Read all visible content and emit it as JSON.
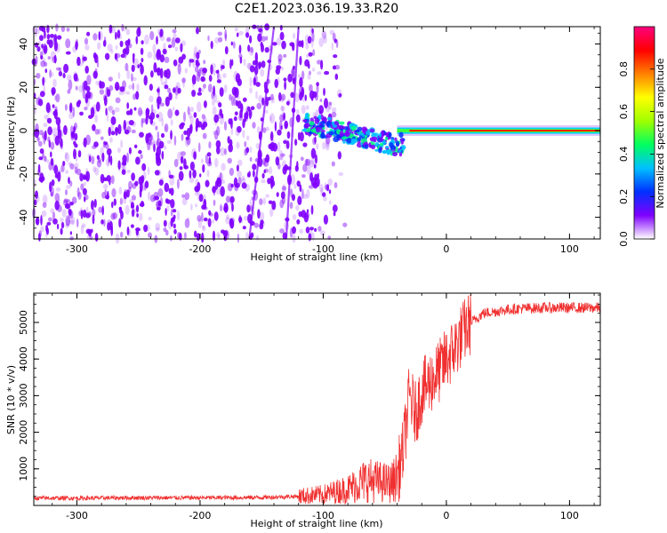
{
  "title": "C2E1.2023.036.19.33.R20",
  "colors": {
    "spectrogram_low": "#8000ff",
    "snr_line": "#f03030",
    "colormap": [
      "#ffffff",
      "#8000ff",
      "#0030ff",
      "#00c0ff",
      "#00ff60",
      "#a0ff00",
      "#ffff00",
      "#ff8000",
      "#ff0000",
      "#ff0080"
    ]
  },
  "chart_data": [
    {
      "type": "heatmap",
      "xlabel": "Height of straight line (km)",
      "ylabel": "Frequency (Hz)",
      "xlim": [
        -335,
        125
      ],
      "ylim": [
        -50,
        48
      ],
      "x_ticks": [
        -300,
        -200,
        -100,
        0,
        100
      ],
      "x_tick_labels": [
        "-300",
        "-200",
        "-100",
        "0",
        "100"
      ],
      "y_ticks": [
        -40,
        -20,
        0,
        20,
        40
      ],
      "y_tick_labels": [
        "-40",
        "-20",
        "0",
        "20",
        "40"
      ],
      "colorbar": {
        "label": "Normalized spectral amplitude",
        "range": [
          0,
          1
        ],
        "ticks": [
          0.0,
          0.2,
          0.4,
          0.6,
          0.8
        ],
        "tick_labels": [
          "0.0",
          "0.2",
          "0.4",
          "0.6",
          "0.8"
        ]
      },
      "description_points": {
        "noise_region_x": [
          -335,
          -110
        ],
        "signal_track_x": [
          -115,
          -40,
          0,
          125
        ],
        "signal_track_freq": [
          4,
          -7,
          0,
          0
        ]
      }
    },
    {
      "type": "line",
      "xlabel": "Height of straight line (km)",
      "ylabel": "SNR (10 * v/v)",
      "xlim": [
        -335,
        125
      ],
      "ylim": [
        0,
        5800
      ],
      "x_ticks": [
        -300,
        -200,
        -100,
        0,
        100
      ],
      "x_tick_labels": [
        "-300",
        "-200",
        "-100",
        "0",
        "100"
      ],
      "y_ticks": [
        1000,
        2000,
        3000,
        4000,
        5000
      ],
      "y_tick_labels": [
        "1000",
        "2000",
        "3000",
        "4000",
        "5000"
      ],
      "series": [
        {
          "x": [
            -335,
            -300,
            -250,
            -200,
            -150,
            -120,
            -100,
            -80,
            -65,
            -55,
            -45,
            -40,
            -35,
            -30,
            -25,
            -20,
            -15,
            -10,
            -5,
            0,
            5,
            10,
            15,
            20,
            30,
            40,
            50,
            60,
            80,
            100,
            125
          ],
          "values": [
            200,
            200,
            210,
            210,
            220,
            250,
            300,
            450,
            700,
            650,
            600,
            800,
            1500,
            3000,
            2500,
            3100,
            3300,
            3500,
            3700,
            4000,
            4200,
            4500,
            4800,
            5000,
            5250,
            5300,
            5350,
            5380,
            5400,
            5400,
            5400
          ]
        }
      ]
    }
  ]
}
